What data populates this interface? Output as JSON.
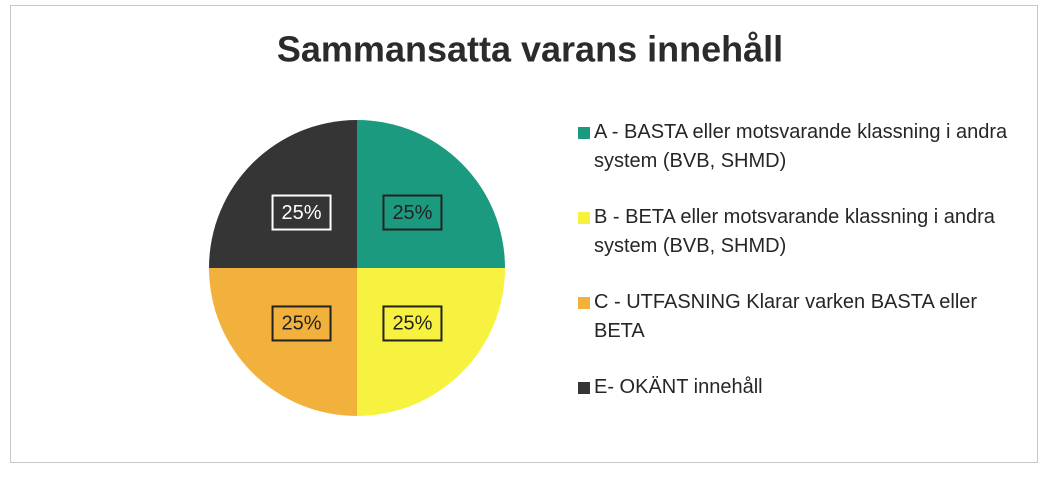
{
  "chart_data": {
    "type": "pie",
    "title": "Sammansatta varans innehåll",
    "categories": [
      "A - BASTA eller motsvarande klassning i andra system (BVB, SHMD)",
      "B - BETA eller motsvarande klassning i andra system (BVB, SHMD)",
      "C - UTFASNING Klarar varken BASTA eller BETA",
      "E- OKÄNT innehåll"
    ],
    "values": [
      25,
      25,
      25,
      25
    ],
    "value_labels": [
      "25%",
      "25%",
      "25%",
      "25%"
    ],
    "colors": [
      "#1c9a7f",
      "#f7f23f",
      "#f2b13d",
      "#353535"
    ],
    "legend": "right"
  }
}
